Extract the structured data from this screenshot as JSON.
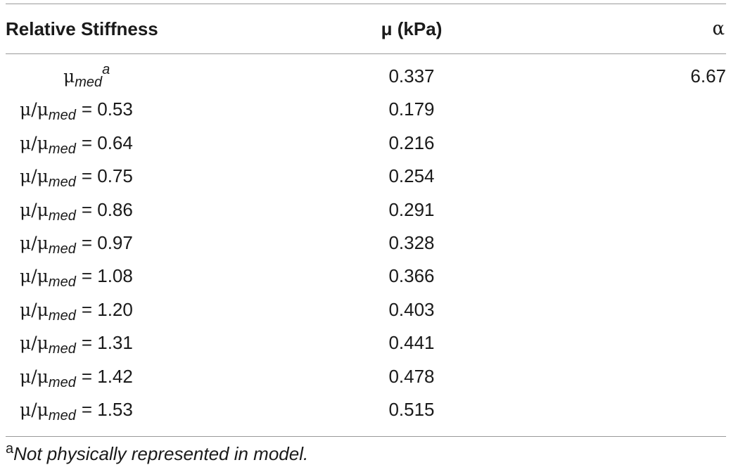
{
  "table": {
    "headers": {
      "relative_stiffness": "Relative Stiffness",
      "mu": "μ (kPa)",
      "alpha": "α"
    },
    "first_row": {
      "symbol": "μ",
      "subscript": "med",
      "superscript": "a",
      "mu": "0.337",
      "alpha": "6.67"
    },
    "ratio_symbol": "μ/μ",
    "ratio_subscript": "med",
    "rows": [
      {
        "ratio": "= 0.53",
        "mu": "0.179"
      },
      {
        "ratio": "= 0.64",
        "mu": "0.216"
      },
      {
        "ratio": "= 0.75",
        "mu": "0.254"
      },
      {
        "ratio": "= 0.86",
        "mu": "0.291"
      },
      {
        "ratio": "= 0.97",
        "mu": "0.328"
      },
      {
        "ratio": "= 1.08",
        "mu": "0.366"
      },
      {
        "ratio": "= 1.20",
        "mu": "0.403"
      },
      {
        "ratio": "= 1.31",
        "mu": "0.441"
      },
      {
        "ratio": "= 1.42",
        "mu": "0.478"
      },
      {
        "ratio": "= 1.53",
        "mu": "0.515"
      }
    ]
  },
  "footnote": {
    "mark": "a",
    "text": "Not physically represented in model."
  }
}
